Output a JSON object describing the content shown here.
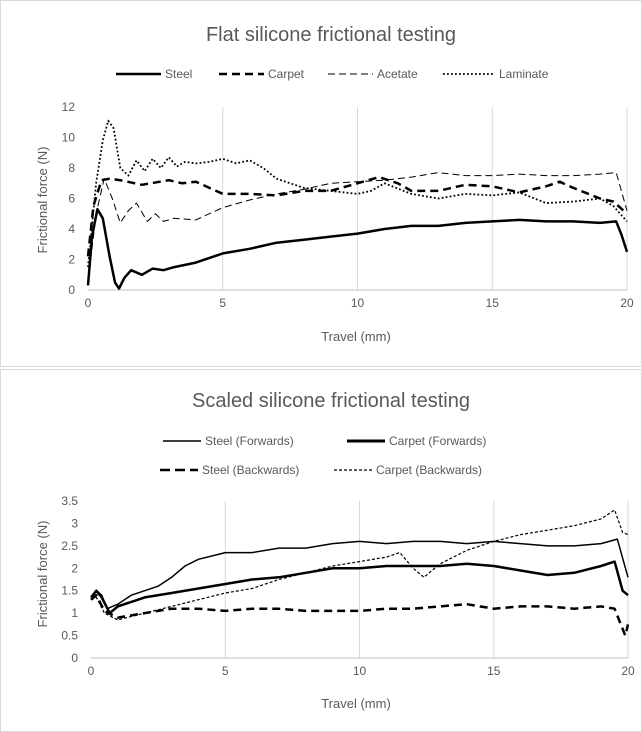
{
  "chart_data": [
    {
      "type": "line",
      "title": "Flat silicone frictional testing",
      "xlabel": "Travel (mm)",
      "ylabel": "Frictional force (N)",
      "xlim": [
        0,
        20
      ],
      "ylim": [
        0,
        12
      ],
      "xticks": [
        "0",
        "5",
        "10",
        "15",
        "20"
      ],
      "yticks": [
        "0",
        "2",
        "4",
        "6",
        "8",
        "10",
        "12"
      ],
      "grid": "vertical",
      "legend_position": "top",
      "series": [
        {
          "name": "Steel",
          "style": "solid-thick",
          "x": [
            0,
            0.15,
            0.35,
            0.55,
            0.8,
            1.0,
            1.15,
            1.35,
            1.6,
            2.0,
            2.4,
            2.8,
            3.2,
            4.0,
            5.0,
            6.0,
            7.0,
            8.0,
            9.0,
            10.0,
            11.0,
            12.0,
            13.0,
            14.0,
            15.0,
            16.0,
            17.0,
            18.0,
            19.0,
            19.6,
            19.8,
            20.0
          ],
          "y": [
            0.3,
            3.5,
            5.3,
            4.7,
            2.2,
            0.5,
            0.1,
            0.8,
            1.3,
            1.0,
            1.4,
            1.3,
            1.5,
            1.8,
            2.4,
            2.7,
            3.1,
            3.3,
            3.5,
            3.7,
            4.0,
            4.2,
            4.2,
            4.4,
            4.5,
            4.6,
            4.5,
            4.5,
            4.4,
            4.5,
            3.6,
            2.5
          ]
        },
        {
          "name": "Carpet",
          "style": "dash-thick",
          "x": [
            0,
            0.2,
            0.5,
            0.8,
            1.2,
            2.0,
            3.0,
            3.5,
            4.0,
            5.0,
            6.0,
            7.0,
            8.0,
            9.0,
            10.0,
            10.8,
            11.5,
            12.0,
            13.0,
            14.0,
            15.0,
            16.0,
            17.0,
            17.5,
            18.0,
            19.0,
            19.5,
            20.0
          ],
          "y": [
            2.2,
            5.5,
            7.2,
            7.3,
            7.2,
            6.9,
            7.2,
            7.0,
            7.1,
            6.3,
            6.3,
            6.2,
            6.5,
            6.5,
            7.0,
            7.4,
            7.0,
            6.5,
            6.5,
            6.9,
            6.8,
            6.4,
            6.8,
            7.1,
            6.7,
            6.0,
            5.8,
            5.0
          ]
        },
        {
          "name": "Acetate",
          "style": "dash-thin",
          "x": [
            0,
            0.3,
            0.6,
            0.9,
            1.2,
            1.5,
            1.8,
            2.2,
            2.5,
            2.8,
            3.2,
            4.0,
            5.0,
            6.0,
            7.0,
            8.0,
            9.0,
            10.0,
            11.0,
            12.0,
            13.0,
            14.0,
            15.0,
            16.0,
            17.0,
            18.0,
            19.0,
            19.6,
            20.0
          ],
          "y": [
            0.5,
            5.0,
            7.3,
            6.0,
            4.4,
            5.2,
            5.7,
            4.5,
            5.0,
            4.5,
            4.7,
            4.6,
            5.4,
            5.9,
            6.3,
            6.6,
            7.0,
            7.1,
            7.2,
            7.4,
            7.7,
            7.5,
            7.5,
            7.6,
            7.5,
            7.5,
            7.6,
            7.7,
            5.2
          ]
        },
        {
          "name": "Laminate",
          "style": "dotted",
          "x": [
            0,
            0.3,
            0.55,
            0.75,
            0.95,
            1.2,
            1.5,
            1.8,
            2.1,
            2.4,
            2.7,
            3.0,
            3.3,
            3.6,
            4.0,
            4.5,
            5.0,
            5.5,
            6.0,
            6.5,
            7.0,
            8.0,
            9.0,
            10.0,
            10.5,
            11.0,
            12.0,
            13.0,
            14.0,
            15.0,
            16.0,
            17.0,
            18.0,
            19.0,
            19.5,
            20.0
          ],
          "y": [
            1.5,
            7.0,
            9.8,
            11.1,
            10.6,
            8.0,
            7.5,
            8.5,
            7.8,
            8.6,
            8.0,
            8.7,
            8.1,
            8.4,
            8.3,
            8.4,
            8.6,
            8.3,
            8.5,
            8.0,
            7.3,
            6.7,
            6.5,
            6.3,
            6.5,
            7.0,
            6.3,
            6.0,
            6.3,
            6.2,
            6.4,
            5.7,
            5.8,
            6.0,
            5.5,
            4.5
          ]
        }
      ]
    },
    {
      "type": "line",
      "title": "Scaled silicone frictional testing",
      "xlabel": "Travel (mm)",
      "ylabel": "Frictional force (N)",
      "xlim": [
        0,
        20
      ],
      "ylim": [
        0,
        3.5
      ],
      "xticks": [
        "0",
        "5",
        "10",
        "15",
        "20"
      ],
      "yticks": [
        "0",
        "0.5",
        "1",
        "1.5",
        "2",
        "2.5",
        "3",
        "3.5"
      ],
      "grid": "vertical",
      "legend_position": "top",
      "series": [
        {
          "name": "Steel (Forwards)",
          "style": "solid-thin",
          "x": [
            0,
            0.2,
            0.4,
            0.6,
            1.0,
            1.5,
            2.0,
            2.5,
            3.0,
            3.5,
            4.0,
            5.0,
            6.0,
            7.0,
            8.0,
            9.0,
            10.0,
            11.0,
            12.0,
            13.0,
            14.0,
            15.0,
            16.0,
            17.0,
            18.0,
            19.0,
            19.6,
            20.0
          ],
          "y": [
            1.3,
            1.5,
            1.4,
            1.1,
            1.2,
            1.4,
            1.5,
            1.6,
            1.8,
            2.05,
            2.2,
            2.35,
            2.35,
            2.45,
            2.45,
            2.55,
            2.6,
            2.55,
            2.6,
            2.6,
            2.55,
            2.6,
            2.55,
            2.5,
            2.5,
            2.55,
            2.65,
            1.8
          ]
        },
        {
          "name": "Carpet (Forwards)",
          "style": "solid-thick",
          "x": [
            0,
            0.2,
            0.4,
            0.7,
            1.0,
            1.5,
            2.0,
            3.0,
            4.0,
            5.0,
            6.0,
            7.0,
            8.0,
            9.0,
            10.0,
            11.0,
            12.0,
            13.0,
            14.0,
            15.0,
            16.0,
            17.0,
            18.0,
            19.0,
            19.5,
            19.8,
            20.0
          ],
          "y": [
            1.35,
            1.5,
            1.35,
            1.0,
            1.15,
            1.25,
            1.35,
            1.45,
            1.55,
            1.65,
            1.75,
            1.8,
            1.9,
            2.0,
            2.0,
            2.05,
            2.05,
            2.05,
            2.1,
            2.05,
            1.95,
            1.85,
            1.9,
            2.05,
            2.15,
            1.5,
            1.4
          ]
        },
        {
          "name": "Steel (Backwards)",
          "style": "dash-thick",
          "x": [
            0,
            0.2,
            0.5,
            1.0,
            2.0,
            3.0,
            4.0,
            5.0,
            6.0,
            7.0,
            8.0,
            9.0,
            10.0,
            11.0,
            12.0,
            13.0,
            14.0,
            15.0,
            16.0,
            17.0,
            18.0,
            19.0,
            19.5,
            19.7,
            19.9,
            20.0
          ],
          "y": [
            1.3,
            1.4,
            1.05,
            0.9,
            1.0,
            1.1,
            1.1,
            1.05,
            1.1,
            1.1,
            1.05,
            1.05,
            1.05,
            1.1,
            1.1,
            1.15,
            1.2,
            1.1,
            1.15,
            1.15,
            1.1,
            1.15,
            1.1,
            0.8,
            0.5,
            0.75
          ]
        },
        {
          "name": "Carpet (Backwards)",
          "style": "dotted-fine",
          "x": [
            0,
            0.2,
            0.5,
            1.0,
            2.0,
            3.0,
            4.0,
            5.0,
            6.0,
            7.0,
            8.0,
            9.0,
            10.0,
            11.0,
            11.5,
            12.0,
            12.4,
            13.0,
            14.0,
            15.0,
            16.0,
            17.0,
            18.0,
            19.0,
            19.5,
            19.8,
            20.0
          ],
          "y": [
            1.3,
            1.35,
            1.0,
            0.85,
            1.0,
            1.15,
            1.3,
            1.45,
            1.55,
            1.75,
            1.9,
            2.05,
            2.15,
            2.25,
            2.35,
            2.0,
            1.8,
            2.1,
            2.4,
            2.6,
            2.75,
            2.85,
            2.95,
            3.1,
            3.3,
            2.8,
            2.75
          ]
        }
      ]
    }
  ]
}
